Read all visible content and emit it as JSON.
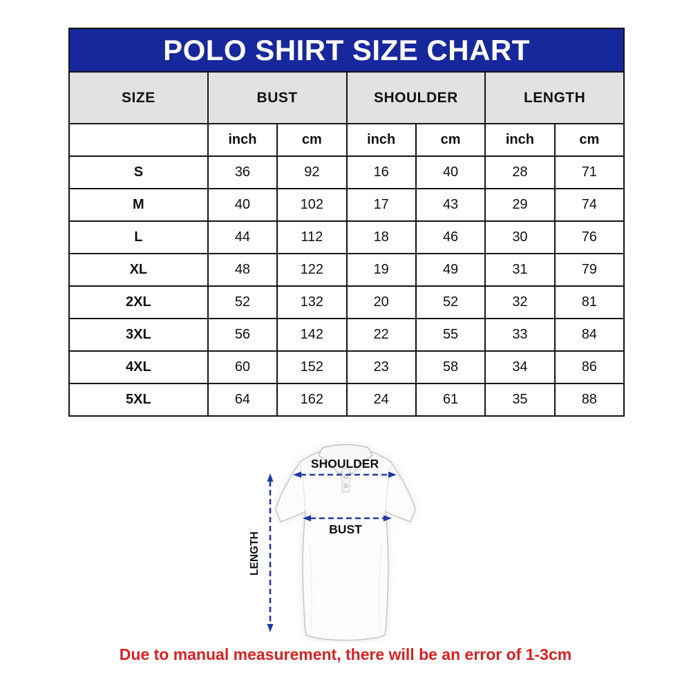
{
  "title": "POLO SHIRT SIZE CHART",
  "table": {
    "group_headers": [
      "SIZE",
      "BUST",
      "SHOULDER",
      "LENGTH"
    ],
    "unit_headers": [
      "inch",
      "cm",
      "inch",
      "cm",
      "inch",
      "cm"
    ],
    "rows": [
      {
        "size": "S",
        "values": [
          "36",
          "92",
          "16",
          "40",
          "28",
          "71"
        ]
      },
      {
        "size": "M",
        "values": [
          "40",
          "102",
          "17",
          "43",
          "29",
          "74"
        ]
      },
      {
        "size": "L",
        "values": [
          "44",
          "112",
          "18",
          "46",
          "30",
          "76"
        ]
      },
      {
        "size": "XL",
        "values": [
          "48",
          "122",
          "19",
          "49",
          "31",
          "79"
        ]
      },
      {
        "size": "2XL",
        "values": [
          "52",
          "132",
          "20",
          "52",
          "32",
          "81"
        ]
      },
      {
        "size": "3XL",
        "values": [
          "56",
          "142",
          "22",
          "55",
          "33",
          "84"
        ]
      },
      {
        "size": "4XL",
        "values": [
          "60",
          "152",
          "23",
          "58",
          "34",
          "86"
        ]
      },
      {
        "size": "5XL",
        "values": [
          "64",
          "162",
          "24",
          "61",
          "35",
          "88"
        ]
      }
    ]
  },
  "diagram": {
    "shoulder_label": "SHOULDER",
    "bust_label": "BUST",
    "length_label": "LENGTH"
  },
  "footnote": "Due to manual measurement, there will be an error of 1-3cm",
  "colors": {
    "banner_blue": "#17289c",
    "header_gray": "#e2e2e0",
    "arrow_blue": "#2138a6",
    "footnote_red": "#d92120",
    "border_black": "#141414"
  },
  "chart_data": {
    "type": "table",
    "title": "POLO SHIRT SIZE CHART",
    "columns": [
      "SIZE",
      "BUST (inch)",
      "BUST (cm)",
      "SHOULDER (inch)",
      "SHOULDER (cm)",
      "LENGTH (inch)",
      "LENGTH (cm)"
    ],
    "rows": [
      [
        "S",
        36,
        92,
        16,
        40,
        28,
        71
      ],
      [
        "M",
        40,
        102,
        17,
        43,
        29,
        74
      ],
      [
        "L",
        44,
        112,
        18,
        46,
        30,
        76
      ],
      [
        "XL",
        48,
        122,
        19,
        49,
        31,
        79
      ],
      [
        "2XL",
        52,
        132,
        20,
        52,
        32,
        81
      ],
      [
        "3XL",
        56,
        142,
        22,
        55,
        33,
        84
      ],
      [
        "4XL",
        60,
        152,
        23,
        58,
        34,
        86
      ],
      [
        "5XL",
        64,
        162,
        24,
        61,
        35,
        88
      ]
    ],
    "footnote": "Due to manual measurement, there will be an error of 1-3cm"
  }
}
